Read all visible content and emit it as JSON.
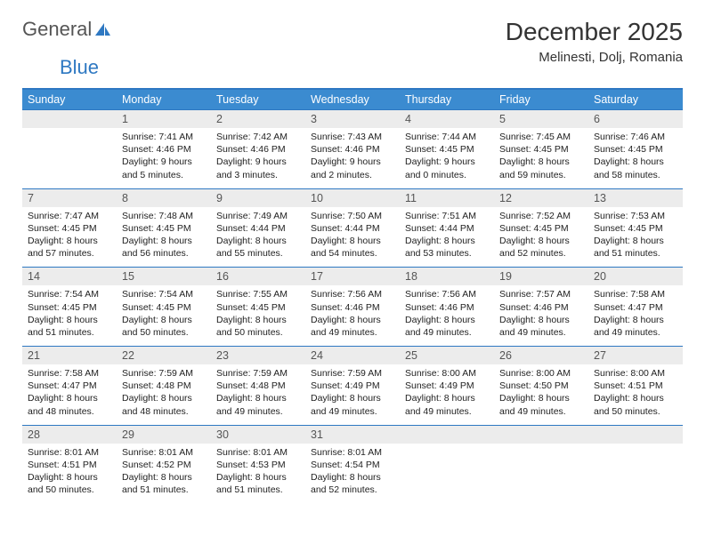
{
  "logo": {
    "part1": "General",
    "part2": "Blue"
  },
  "title": "December 2025",
  "location": "Melinesti, Dolj, Romania",
  "colors": {
    "header_bg": "#3b8bd0",
    "header_border": "#2e78c2",
    "daynum_bg": "#ececec",
    "text": "#333333"
  },
  "fonts": {
    "title_size": 28,
    "location_size": 15,
    "dow_size": 12.5,
    "cell_size": 10.5
  },
  "dow": [
    "Sunday",
    "Monday",
    "Tuesday",
    "Wednesday",
    "Thursday",
    "Friday",
    "Saturday"
  ],
  "weeks": [
    {
      "nums": [
        "",
        "1",
        "2",
        "3",
        "4",
        "5",
        "6"
      ],
      "cells": [
        null,
        {
          "sunrise": "7:41 AM",
          "sunset": "4:46 PM",
          "daylight": "9 hours and 5 minutes."
        },
        {
          "sunrise": "7:42 AM",
          "sunset": "4:46 PM",
          "daylight": "9 hours and 3 minutes."
        },
        {
          "sunrise": "7:43 AM",
          "sunset": "4:46 PM",
          "daylight": "9 hours and 2 minutes."
        },
        {
          "sunrise": "7:44 AM",
          "sunset": "4:45 PM",
          "daylight": "9 hours and 0 minutes."
        },
        {
          "sunrise": "7:45 AM",
          "sunset": "4:45 PM",
          "daylight": "8 hours and 59 minutes."
        },
        {
          "sunrise": "7:46 AM",
          "sunset": "4:45 PM",
          "daylight": "8 hours and 58 minutes."
        }
      ]
    },
    {
      "nums": [
        "7",
        "8",
        "9",
        "10",
        "11",
        "12",
        "13"
      ],
      "cells": [
        {
          "sunrise": "7:47 AM",
          "sunset": "4:45 PM",
          "daylight": "8 hours and 57 minutes."
        },
        {
          "sunrise": "7:48 AM",
          "sunset": "4:45 PM",
          "daylight": "8 hours and 56 minutes."
        },
        {
          "sunrise": "7:49 AM",
          "sunset": "4:44 PM",
          "daylight": "8 hours and 55 minutes."
        },
        {
          "sunrise": "7:50 AM",
          "sunset": "4:44 PM",
          "daylight": "8 hours and 54 minutes."
        },
        {
          "sunrise": "7:51 AM",
          "sunset": "4:44 PM",
          "daylight": "8 hours and 53 minutes."
        },
        {
          "sunrise": "7:52 AM",
          "sunset": "4:45 PM",
          "daylight": "8 hours and 52 minutes."
        },
        {
          "sunrise": "7:53 AM",
          "sunset": "4:45 PM",
          "daylight": "8 hours and 51 minutes."
        }
      ]
    },
    {
      "nums": [
        "14",
        "15",
        "16",
        "17",
        "18",
        "19",
        "20"
      ],
      "cells": [
        {
          "sunrise": "7:54 AM",
          "sunset": "4:45 PM",
          "daylight": "8 hours and 51 minutes."
        },
        {
          "sunrise": "7:54 AM",
          "sunset": "4:45 PM",
          "daylight": "8 hours and 50 minutes."
        },
        {
          "sunrise": "7:55 AM",
          "sunset": "4:45 PM",
          "daylight": "8 hours and 50 minutes."
        },
        {
          "sunrise": "7:56 AM",
          "sunset": "4:46 PM",
          "daylight": "8 hours and 49 minutes."
        },
        {
          "sunrise": "7:56 AM",
          "sunset": "4:46 PM",
          "daylight": "8 hours and 49 minutes."
        },
        {
          "sunrise": "7:57 AM",
          "sunset": "4:46 PM",
          "daylight": "8 hours and 49 minutes."
        },
        {
          "sunrise": "7:58 AM",
          "sunset": "4:47 PM",
          "daylight": "8 hours and 49 minutes."
        }
      ]
    },
    {
      "nums": [
        "21",
        "22",
        "23",
        "24",
        "25",
        "26",
        "27"
      ],
      "cells": [
        {
          "sunrise": "7:58 AM",
          "sunset": "4:47 PM",
          "daylight": "8 hours and 48 minutes."
        },
        {
          "sunrise": "7:59 AM",
          "sunset": "4:48 PM",
          "daylight": "8 hours and 48 minutes."
        },
        {
          "sunrise": "7:59 AM",
          "sunset": "4:48 PM",
          "daylight": "8 hours and 49 minutes."
        },
        {
          "sunrise": "7:59 AM",
          "sunset": "4:49 PM",
          "daylight": "8 hours and 49 minutes."
        },
        {
          "sunrise": "8:00 AM",
          "sunset": "4:49 PM",
          "daylight": "8 hours and 49 minutes."
        },
        {
          "sunrise": "8:00 AM",
          "sunset": "4:50 PM",
          "daylight": "8 hours and 49 minutes."
        },
        {
          "sunrise": "8:00 AM",
          "sunset": "4:51 PM",
          "daylight": "8 hours and 50 minutes."
        }
      ]
    },
    {
      "nums": [
        "28",
        "29",
        "30",
        "31",
        "",
        "",
        ""
      ],
      "cells": [
        {
          "sunrise": "8:01 AM",
          "sunset": "4:51 PM",
          "daylight": "8 hours and 50 minutes."
        },
        {
          "sunrise": "8:01 AM",
          "sunset": "4:52 PM",
          "daylight": "8 hours and 51 minutes."
        },
        {
          "sunrise": "8:01 AM",
          "sunset": "4:53 PM",
          "daylight": "8 hours and 51 minutes."
        },
        {
          "sunrise": "8:01 AM",
          "sunset": "4:54 PM",
          "daylight": "8 hours and 52 minutes."
        },
        null,
        null,
        null
      ]
    }
  ],
  "labels": {
    "sunrise": "Sunrise:",
    "sunset": "Sunset:",
    "daylight": "Daylight:"
  }
}
